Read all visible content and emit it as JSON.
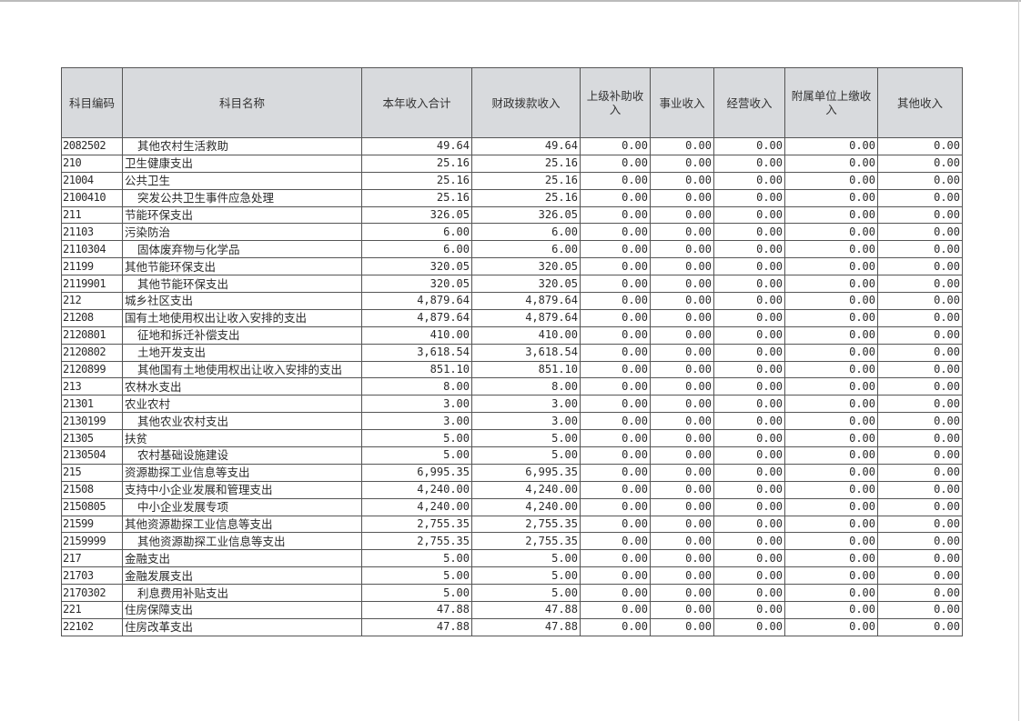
{
  "table": {
    "headers": [
      "科目编码",
      "科目名称",
      "本年收入合计",
      "财政拨款收入",
      "上级补助收入",
      "事业收入",
      "经营收入",
      "附属单位上缴收入",
      "其他收入"
    ],
    "rows": [
      [
        "2082502",
        "其他农村生活救助",
        "49.64",
        "49.64",
        "0.00",
        "0.00",
        "0.00",
        "0.00",
        "0.00"
      ],
      [
        "210",
        "卫生健康支出",
        "25.16",
        "25.16",
        "0.00",
        "0.00",
        "0.00",
        "0.00",
        "0.00"
      ],
      [
        "21004",
        "公共卫生",
        "25.16",
        "25.16",
        "0.00",
        "0.00",
        "0.00",
        "0.00",
        "0.00"
      ],
      [
        "2100410",
        "突发公共卫生事件应急处理",
        "25.16",
        "25.16",
        "0.00",
        "0.00",
        "0.00",
        "0.00",
        "0.00"
      ],
      [
        "211",
        "节能环保支出",
        "326.05",
        "326.05",
        "0.00",
        "0.00",
        "0.00",
        "0.00",
        "0.00"
      ],
      [
        "21103",
        "污染防治",
        "6.00",
        "6.00",
        "0.00",
        "0.00",
        "0.00",
        "0.00",
        "0.00"
      ],
      [
        "2110304",
        "固体废弃物与化学品",
        "6.00",
        "6.00",
        "0.00",
        "0.00",
        "0.00",
        "0.00",
        "0.00"
      ],
      [
        "21199",
        "其他节能环保支出",
        "320.05",
        "320.05",
        "0.00",
        "0.00",
        "0.00",
        "0.00",
        "0.00"
      ],
      [
        "2119901",
        "其他节能环保支出",
        "320.05",
        "320.05",
        "0.00",
        "0.00",
        "0.00",
        "0.00",
        "0.00"
      ],
      [
        "212",
        "城乡社区支出",
        "4,879.64",
        "4,879.64",
        "0.00",
        "0.00",
        "0.00",
        "0.00",
        "0.00"
      ],
      [
        "21208",
        "国有土地使用权出让收入安排的支出",
        "4,879.64",
        "4,879.64",
        "0.00",
        "0.00",
        "0.00",
        "0.00",
        "0.00"
      ],
      [
        "2120801",
        "征地和拆迁补偿支出",
        "410.00",
        "410.00",
        "0.00",
        "0.00",
        "0.00",
        "0.00",
        "0.00"
      ],
      [
        "2120802",
        "土地开发支出",
        "3,618.54",
        "3,618.54",
        "0.00",
        "0.00",
        "0.00",
        "0.00",
        "0.00"
      ],
      [
        "2120899",
        "其他国有土地使用权出让收入安排的支出",
        "851.10",
        "851.10",
        "0.00",
        "0.00",
        "0.00",
        "0.00",
        "0.00"
      ],
      [
        "213",
        "农林水支出",
        "8.00",
        "8.00",
        "0.00",
        "0.00",
        "0.00",
        "0.00",
        "0.00"
      ],
      [
        "21301",
        "农业农村",
        "3.00",
        "3.00",
        "0.00",
        "0.00",
        "0.00",
        "0.00",
        "0.00"
      ],
      [
        "2130199",
        "其他农业农村支出",
        "3.00",
        "3.00",
        "0.00",
        "0.00",
        "0.00",
        "0.00",
        "0.00"
      ],
      [
        "21305",
        "扶贫",
        "5.00",
        "5.00",
        "0.00",
        "0.00",
        "0.00",
        "0.00",
        "0.00"
      ],
      [
        "2130504",
        "农村基础设施建设",
        "5.00",
        "5.00",
        "0.00",
        "0.00",
        "0.00",
        "0.00",
        "0.00"
      ],
      [
        "215",
        "资源勘探工业信息等支出",
        "6,995.35",
        "6,995.35",
        "0.00",
        "0.00",
        "0.00",
        "0.00",
        "0.00"
      ],
      [
        "21508",
        "支持中小企业发展和管理支出",
        "4,240.00",
        "4,240.00",
        "0.00",
        "0.00",
        "0.00",
        "0.00",
        "0.00"
      ],
      [
        "2150805",
        "中小企业发展专项",
        "4,240.00",
        "4,240.00",
        "0.00",
        "0.00",
        "0.00",
        "0.00",
        "0.00"
      ],
      [
        "21599",
        "其他资源勘探工业信息等支出",
        "2,755.35",
        "2,755.35",
        "0.00",
        "0.00",
        "0.00",
        "0.00",
        "0.00"
      ],
      [
        "2159999",
        "其他资源勘探工业信息等支出",
        "2,755.35",
        "2,755.35",
        "0.00",
        "0.00",
        "0.00",
        "0.00",
        "0.00"
      ],
      [
        "217",
        "金融支出",
        "5.00",
        "5.00",
        "0.00",
        "0.00",
        "0.00",
        "0.00",
        "0.00"
      ],
      [
        "21703",
        "金融发展支出",
        "5.00",
        "5.00",
        "0.00",
        "0.00",
        "0.00",
        "0.00",
        "0.00"
      ],
      [
        "2170302",
        "利息费用补贴支出",
        "5.00",
        "5.00",
        "0.00",
        "0.00",
        "0.00",
        "0.00",
        "0.00"
      ],
      [
        "221",
        "住房保障支出",
        "47.88",
        "47.88",
        "0.00",
        "0.00",
        "0.00",
        "0.00",
        "0.00"
      ],
      [
        "22102",
        "住房改革支出",
        "47.88",
        "47.88",
        "0.00",
        "0.00",
        "0.00",
        "0.00",
        "0.00"
      ]
    ]
  }
}
